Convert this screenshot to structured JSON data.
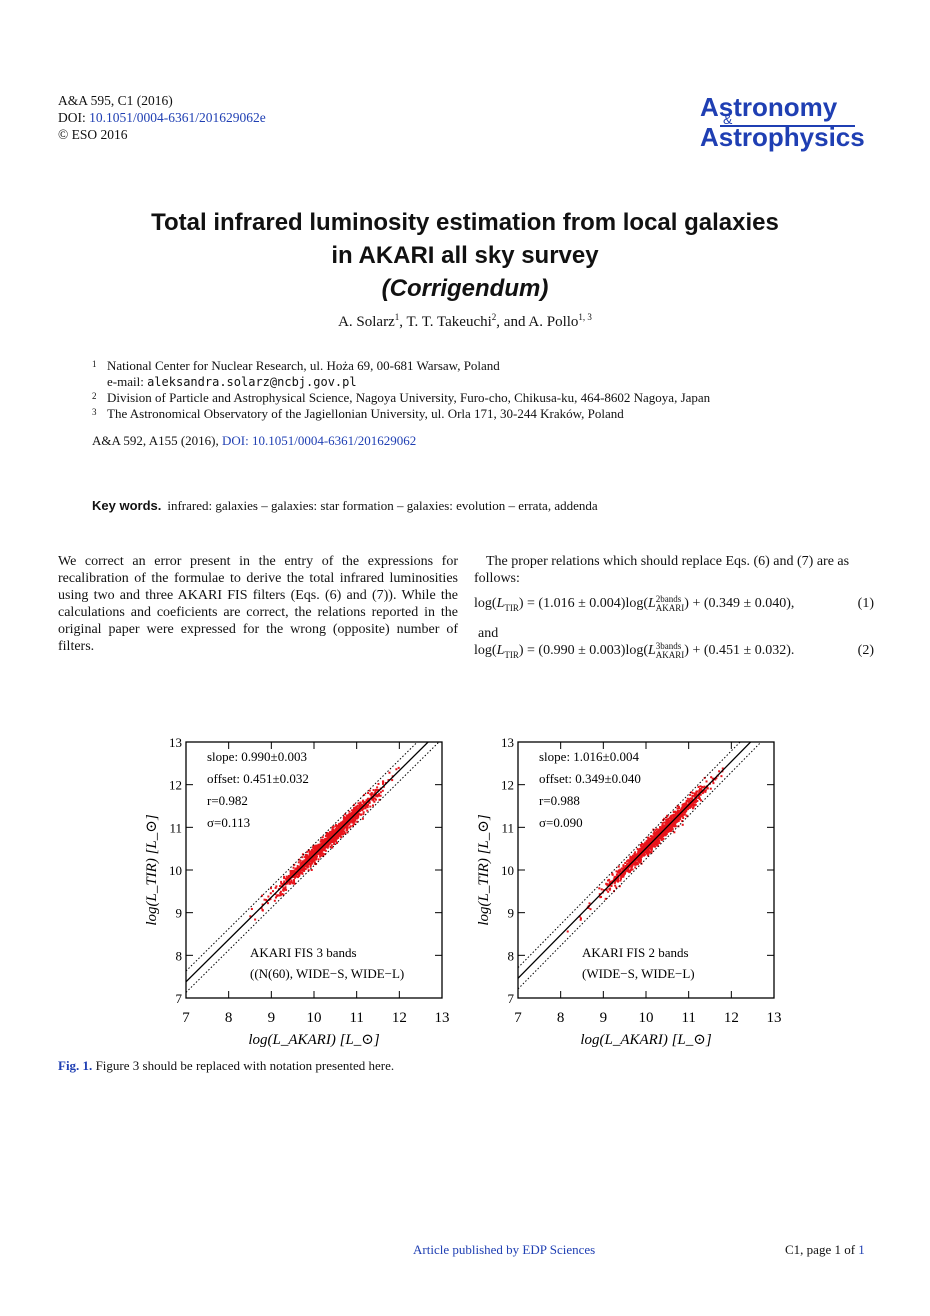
{
  "header": {
    "citation": "A&A 595, C1 (2016)",
    "doi_label": "DOI:",
    "doi": "10.1051/0004-6361/201629062e",
    "copyright": "© ESO 2016"
  },
  "journal_logo": {
    "line1": "Astronomy",
    "amp": "&",
    "line2": "Astrophysics",
    "color": "#1f3fb3"
  },
  "title": {
    "line1": "Total infrared luminosity estimation from local galaxies",
    "line2": "in AKARI all sky survey",
    "line3": "(Corrigendum)"
  },
  "authors": [
    {
      "name": "A. Solarz",
      "aff": "1"
    },
    {
      "name": "T. T. Takeuchi",
      "aff": "2"
    },
    {
      "name": "A. Pollo",
      "aff": "1, 3"
    }
  ],
  "authors_and": "and",
  "affiliations": [
    {
      "num": "1",
      "text": "National Center for Nuclear Research, ul. Hoża 69, 00-681 Warsaw, Poland"
    },
    {
      "num": "",
      "email_label": "e-mail:",
      "email": "aleksandra.solarz@ncbj.gov.pl"
    },
    {
      "num": "2",
      "text": "Division of Particle and Astrophysical Science, Nagoya University, Furo-cho, Chikusa-ku, 464-8602 Nagoya, Japan"
    },
    {
      "num": "3",
      "text": "The Astronomical Observatory of the Jagiellonian University, ul. Orla 171, 30-244 Kraków, Poland"
    }
  ],
  "original_ref": {
    "text": "A&A 592, A155 (2016),",
    "doi": "DOI: 10.1051/0004-6361/201629062"
  },
  "keywords": {
    "label": "Key words.",
    "text": "infrared: galaxies – galaxies: star formation – galaxies: evolution – errata, addenda"
  },
  "body": {
    "col1": "We correct an error present in the entry of the expressions for recalibration of the formulae to derive the total infrared luminosities using two and three AKARI FIS filters (Eqs. (6) and (7)). While the calculations and coeficients are correct, the relations reported in the original paper were expressed for the wrong (opposite) number of filters.",
    "col2_intro": "The proper relations which should replace Eqs. (6) and (7) are as follows:",
    "and": "and",
    "eq1": {
      "lhs_sub": "TIR",
      "a": "(1.016 ± 0.004)",
      "sup": "2bands",
      "sub": "AKARI",
      "b": "(0.349 ± 0.040),",
      "num": "(1)"
    },
    "eq2": {
      "lhs_sub": "TIR",
      "a": "(0.990 ± 0.003)",
      "sup": "3bands",
      "sub": "AKARI",
      "b": "(0.451 ± 0.032).",
      "num": "(2)"
    }
  },
  "chart_data": [
    {
      "type": "scatter",
      "xlabel": "log(L_AKARI) [L_⊙]",
      "ylabel": "log(L_TIR) [L_⊙]",
      "xlim": [
        7,
        13
      ],
      "ylim": [
        7,
        13
      ],
      "xticks": [
        "7",
        "8",
        "9",
        "10",
        "11",
        "12",
        "13"
      ],
      "yticks": [
        "7",
        "8",
        "9",
        "10",
        "11",
        "12",
        "13"
      ],
      "annotations": [
        "slope: 0.990±0.003",
        "offset: 0.451±0.032",
        "r=0.982",
        "σ=0.113"
      ],
      "label_lines": [
        "AKARI FIS 3 bands",
        "((N(60), WIDE−S, WIDE−L)"
      ],
      "fit": {
        "slope": 0.99,
        "offset": 0.451
      },
      "point_color": "#e8141b",
      "cloud": {
        "x_range": [
          7.5,
          12.0
        ],
        "center_x": 10.3,
        "center_y": 10.65
      }
    },
    {
      "type": "scatter",
      "xlabel": "log(L_AKARI) [L_⊙]",
      "ylabel": "log(L_TIR) [L_⊙]",
      "xlim": [
        7,
        13
      ],
      "ylim": [
        7,
        13
      ],
      "xticks": [
        "7",
        "8",
        "9",
        "10",
        "11",
        "12",
        "13"
      ],
      "yticks": [
        "7",
        "8",
        "9",
        "10",
        "11",
        "12",
        "13"
      ],
      "annotations": [
        "slope: 1.016±0.004",
        "offset: 0.349±0.040",
        "r=0.988",
        "σ=0.090"
      ],
      "label_lines": [
        "AKARI FIS 2 bands",
        "(WIDE−S, WIDE−L)"
      ],
      "fit": {
        "slope": 1.016,
        "offset": 0.349
      },
      "point_color": "#e8141b",
      "cloud": {
        "x_range": [
          7.6,
          11.9
        ],
        "center_x": 10.3,
        "center_y": 10.8
      }
    }
  ],
  "caption": {
    "label": "Fig. 1.",
    "text": "Figure 3 should be replaced with notation presented here."
  },
  "footer": {
    "publisher": "Article published by EDP Sciences",
    "page_prefix": "C1, page 1 of",
    "page_total": "1"
  }
}
